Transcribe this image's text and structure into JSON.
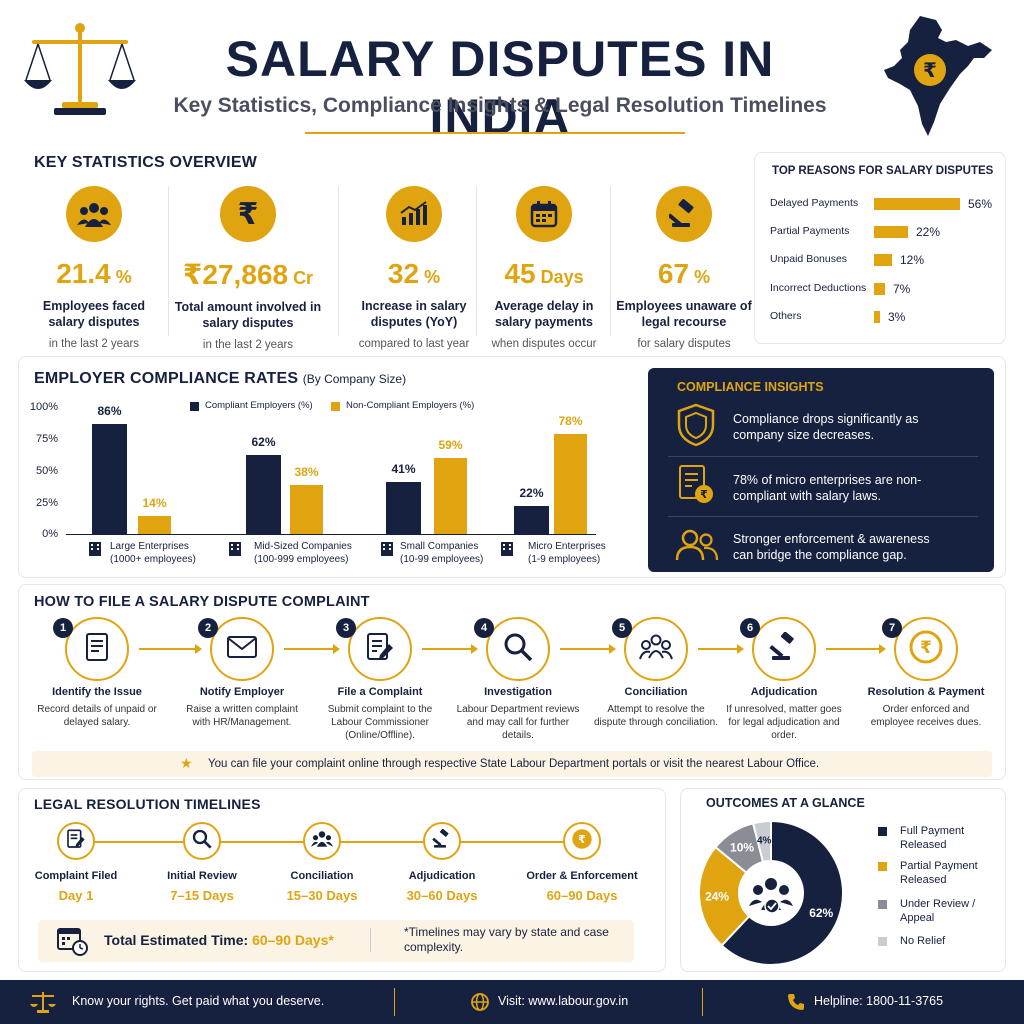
{
  "header": {
    "title": "SALARY DISPUTES IN INDIA",
    "subtitle": "Key Statistics, Compliance Insights & Legal Resolution Timelines"
  },
  "key_stats": {
    "title": "KEY STATISTICS OVERVIEW",
    "items": [
      {
        "icon": "people-icon",
        "value": "21.4",
        "unit": "%",
        "label": "Employees faced salary disputes",
        "note": "in the last 2 years"
      },
      {
        "icon": "rupee-icon",
        "value": "₹27,868",
        "unit": "Cr",
        "label": "Total amount involved in salary disputes",
        "note": "in the last 2 years"
      },
      {
        "icon": "growth-chart-icon",
        "value": "32",
        "unit": "%",
        "label": "Increase in salary disputes (YoY)",
        "note": "compared to last year"
      },
      {
        "icon": "calendar-icon",
        "value": "45",
        "unit": "Days",
        "label": "Average delay in salary payments",
        "note": "when disputes occur"
      },
      {
        "icon": "gavel-icon",
        "value": "67",
        "unit": "%",
        "label": "Employees unaware of legal recourse",
        "note": "for salary disputes"
      }
    ]
  },
  "reasons": {
    "title": "TOP REASONS FOR SALARY DISPUTES",
    "items": [
      {
        "label": "Delayed Payments",
        "value": 56,
        "text": "56%"
      },
      {
        "label": "Partial Payments",
        "value": 22,
        "text": "22%"
      },
      {
        "label": "Unpaid Bonuses",
        "value": 12,
        "text": "12%"
      },
      {
        "label": "Incorrect Deductions",
        "value": 7,
        "text": "7%"
      },
      {
        "label": "Others",
        "value": 3,
        "text": "3%"
      }
    ]
  },
  "compliance": {
    "title": "EMPLOYER COMPLIANCE RATES",
    "title_note": "(By Company Size)",
    "legend": [
      "Compliant Employers (%)",
      "Non-Compliant Employers (%)"
    ],
    "yticks": [
      "100%",
      "75%",
      "50%",
      "25%",
      "0%"
    ]
  },
  "chart_data": {
    "type": "bar",
    "title": "EMPLOYER COMPLIANCE RATES",
    "categories": [
      "Large Enterprises",
      "Mid-Sized Companies",
      "Small Companies",
      "Micro Enterprises"
    ],
    "category_notes": [
      "(1000+ employees)",
      "(100-999 employees)",
      "(10-99 employees)",
      "(1-9 employees)"
    ],
    "series": [
      {
        "name": "Compliant Employers (%)",
        "values": [
          86,
          62,
          41,
          22
        ],
        "color": "#16213f"
      },
      {
        "name": "Non-Compliant Employers (%)",
        "values": [
          14,
          38,
          59,
          78
        ],
        "color": "#e0a411"
      }
    ],
    "ylim": [
      0,
      100
    ],
    "legend_position": "top"
  },
  "insights": {
    "title": "COMPLIANCE INSIGHTS",
    "items": [
      {
        "icon": "shield-icon",
        "text": "Compliance drops significantly as company size decreases."
      },
      {
        "icon": "document-rupee-icon",
        "text": "78% of micro enterprises are non-compliant with salary laws."
      },
      {
        "icon": "people-outline-icon",
        "text": "Stronger enforcement & awareness can bridge the compliance gap."
      }
    ]
  },
  "steps": {
    "title": "HOW TO FILE A SALARY DISPUTE COMPLAINT",
    "items": [
      {
        "num": "1",
        "icon": "document-icon",
        "title": "Identify the Issue",
        "desc": "Record details of unpaid or delayed salary."
      },
      {
        "num": "2",
        "icon": "mail-icon",
        "title": "Notify Employer",
        "desc": "Raise a written complaint with HR/Management."
      },
      {
        "num": "3",
        "icon": "file-edit-icon",
        "title": "File a Complaint",
        "desc": "Submit complaint to the Labour Commissioner (Online/Offline)."
      },
      {
        "num": "4",
        "icon": "search-icon",
        "title": "Investigation",
        "desc": "Labour Department reviews and may call for further details."
      },
      {
        "num": "5",
        "icon": "group-icon",
        "title": "Conciliation",
        "desc": "Attempt to resolve the dispute through conciliation."
      },
      {
        "num": "6",
        "icon": "gavel-icon",
        "title": "Adjudication",
        "desc": "If unresolved, matter goes for legal adjudication and order."
      },
      {
        "num": "7",
        "icon": "rupee-coin-icon",
        "title": "Resolution & Payment",
        "desc": "Order enforced and employee receives dues."
      }
    ],
    "tip": "You can file your complaint online through respective State Labour Department portals or visit the nearest Labour Office."
  },
  "timelines": {
    "title": "LEGAL RESOLUTION TIMELINES",
    "items": [
      {
        "icon": "file-edit-icon",
        "title": "Complaint Filed",
        "days": "Day 1"
      },
      {
        "icon": "search-icon",
        "title": "Initial Review",
        "days": "7–15 Days"
      },
      {
        "icon": "group-icon",
        "title": "Conciliation",
        "days": "15–30 Days"
      },
      {
        "icon": "gavel-icon",
        "title": "Adjudication",
        "days": "30–60 Days"
      },
      {
        "icon": "rupee-coin-icon",
        "title": "Order & Enforcement",
        "days": "60–90 Days"
      }
    ],
    "total_label": "Total Estimated Time:",
    "total_value": "60–90 Days*",
    "footnote": "*Timelines may vary by state and case complexity."
  },
  "outcomes": {
    "title": "OUTCOMES AT A GLANCE",
    "slices": [
      {
        "label": "Full Payment Released",
        "value": 62,
        "text": "62%",
        "color": "#16213f"
      },
      {
        "label": "Partial Payment Released",
        "value": 24,
        "text": "24%",
        "color": "#e0a411"
      },
      {
        "label": "Under Review / Appeal",
        "value": 10,
        "text": "10%",
        "color": "#8a8d96"
      },
      {
        "label": "No Relief",
        "value": 4,
        "text": "4%",
        "color": "#c9ccd3"
      }
    ]
  },
  "footer": {
    "rights": "Know your rights. Get paid what you deserve.",
    "visit": "Visit: www.labour.gov.in",
    "helpline": "Helpline: 1800-11-3765"
  }
}
